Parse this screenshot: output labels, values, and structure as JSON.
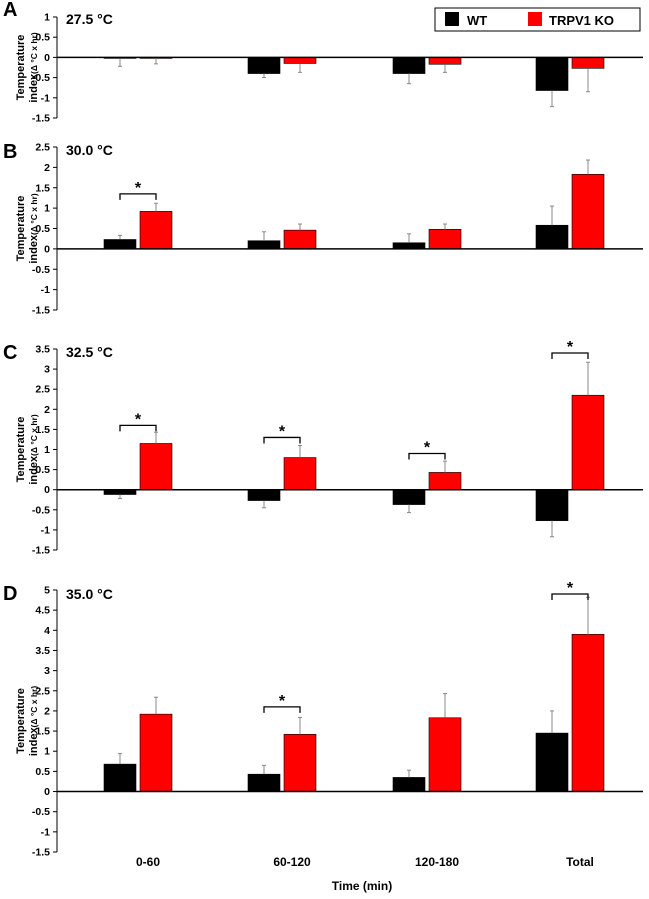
{
  "chart_data": [
    {
      "type": "bar",
      "panel_letter": "A",
      "title": "27.5 °C",
      "ylabel": "Temperature",
      "ylabel_line2": "index",
      "ylabel_unit": "(Δ °C x hr)",
      "ylim": [
        -1.5,
        1
      ],
      "yticks": [
        "1",
        "0.5",
        "0",
        "-0.5",
        "-1",
        "-1.5"
      ],
      "ytick_values": [
        1,
        0.5,
        0,
        -0.5,
        -1,
        -1.5
      ],
      "categories": [
        "0-60",
        "60-120",
        "120-180",
        "Total"
      ],
      "series": [
        {
          "name": "WT",
          "color": "#000000",
          "values": [
            -0.02,
            -0.4,
            -0.4,
            -0.82
          ],
          "errors": [
            0.2,
            0.1,
            0.25,
            0.4
          ]
        },
        {
          "name": "TRPV1 KO",
          "color": "#ff0000",
          "values": [
            -0.01,
            -0.15,
            -0.17,
            -0.27
          ],
          "errors": [
            0.15,
            0.22,
            0.2,
            0.58
          ]
        }
      ],
      "significance": []
    },
    {
      "type": "bar",
      "panel_letter": "B",
      "title": "30.0 °C",
      "ylabel": "Temperature",
      "ylabel_line2": "index",
      "ylabel_unit": "(Δ °C x hr)",
      "ylim": [
        -1.5,
        2.5
      ],
      "yticks": [
        "2.5",
        "2",
        "1.5",
        "1",
        "0.5",
        "0",
        "-0.5",
        "-1",
        "-1.5"
      ],
      "ytick_values": [
        2.5,
        2,
        1.5,
        1,
        0.5,
        0,
        -0.5,
        -1,
        -1.5
      ],
      "categories": [
        "0-60",
        "60-120",
        "120-180",
        "Total"
      ],
      "series": [
        {
          "name": "WT",
          "color": "#000000",
          "values": [
            0.23,
            0.2,
            0.15,
            0.58
          ],
          "errors": [
            0.1,
            0.22,
            0.22,
            0.47
          ]
        },
        {
          "name": "TRPV1 KO",
          "color": "#ff0000",
          "values": [
            0.92,
            0.46,
            0.48,
            1.83
          ],
          "errors": [
            0.2,
            0.15,
            0.13,
            0.35
          ]
        }
      ],
      "significance": [
        {
          "category": 0,
          "label": "*",
          "level": 1.35
        }
      ]
    },
    {
      "type": "bar",
      "panel_letter": "C",
      "title": "32.5 °C",
      "ylabel": "Temperature",
      "ylabel_line2": "index",
      "ylabel_unit": "(Δ °C x hr)",
      "ylim": [
        -1.5,
        3.5
      ],
      "yticks": [
        "3.5",
        "3",
        "2.5",
        "2",
        "1.5",
        "1",
        "0.5",
        "0",
        "-0.5",
        "-1",
        "-1.5"
      ],
      "ytick_values": [
        3.5,
        3,
        2.5,
        2,
        1.5,
        1,
        0.5,
        0,
        -0.5,
        -1,
        -1.5
      ],
      "categories": [
        "0-60",
        "60-120",
        "120-180",
        "Total"
      ],
      "series": [
        {
          "name": "WT",
          "color": "#000000",
          "values": [
            -0.12,
            -0.27,
            -0.37,
            -0.77
          ],
          "errors": [
            0.1,
            0.18,
            0.2,
            0.4
          ]
        },
        {
          "name": "TRPV1 KO",
          "color": "#ff0000",
          "values": [
            1.15,
            0.8,
            0.43,
            2.35
          ],
          "errors": [
            0.28,
            0.3,
            0.28,
            0.82
          ]
        }
      ],
      "significance": [
        {
          "category": 0,
          "label": "*",
          "level": 1.6
        },
        {
          "category": 1,
          "label": "*",
          "level": 1.3
        },
        {
          "category": 2,
          "label": "*",
          "level": 0.9
        },
        {
          "category": 3,
          "label": "*",
          "level": 3.4
        }
      ]
    },
    {
      "type": "bar",
      "panel_letter": "D",
      "title": "35.0 °C",
      "ylabel": "Temperature",
      "ylabel_line2": "index",
      "ylabel_unit": "(Δ °C x hr)",
      "ylim": [
        -1.5,
        5
      ],
      "yticks": [
        "5",
        "4.5",
        "4",
        "3.5",
        "3",
        "2.5",
        "2",
        "1.5",
        "1",
        "0.5",
        "0",
        "-0.5",
        "-1",
        "-1.5"
      ],
      "ytick_values": [
        5,
        4.5,
        4,
        3.5,
        3,
        2.5,
        2,
        1.5,
        1,
        0.5,
        0,
        -0.5,
        -1,
        -1.5
      ],
      "categories": [
        "0-60",
        "60-120",
        "120-180",
        "Total"
      ],
      "series": [
        {
          "name": "WT",
          "color": "#000000",
          "values": [
            0.68,
            0.43,
            0.35,
            1.45
          ],
          "errors": [
            0.26,
            0.22,
            0.18,
            0.55
          ]
        },
        {
          "name": "TRPV1 KO",
          "color": "#ff0000",
          "values": [
            1.92,
            1.42,
            1.83,
            3.9
          ],
          "errors": [
            0.42,
            0.42,
            0.6,
            0.92
          ]
        }
      ],
      "significance": [
        {
          "category": 1,
          "label": "*",
          "level": 2.1
        },
        {
          "category": 3,
          "label": "*",
          "level": 4.9
        }
      ]
    }
  ],
  "legend": {
    "items": [
      {
        "label": "WT",
        "color": "#000000"
      },
      {
        "label": "TRPV1 KO",
        "color": "#ff0000"
      }
    ],
    "position": "top-right"
  },
  "x_axis": {
    "categories": [
      "0-60",
      "60-120",
      "120-180",
      "Total"
    ],
    "label": "Time (min)"
  }
}
